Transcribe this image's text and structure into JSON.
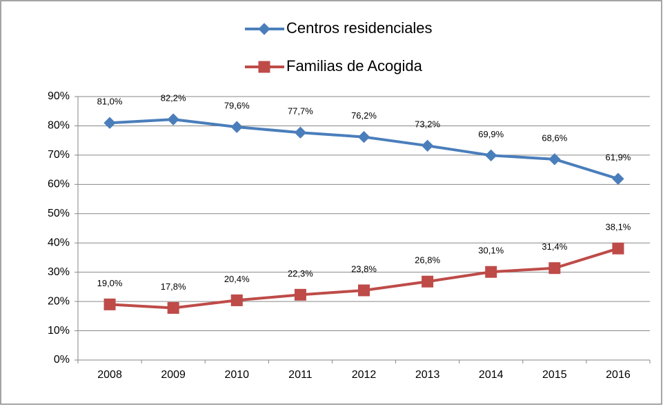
{
  "chart_data": {
    "type": "line",
    "categories": [
      "2008",
      "2009",
      "2010",
      "2011",
      "2012",
      "2013",
      "2014",
      "2015",
      "2016"
    ],
    "series": [
      {
        "name": "Centros residenciales",
        "color": "#4a7ebb",
        "marker": "diamond",
        "values": [
          81.0,
          82.2,
          79.6,
          77.7,
          76.2,
          73.2,
          69.9,
          68.6,
          61.9
        ],
        "value_labels": [
          "81,0%",
          "82,2%",
          "79,6%",
          "77,7%",
          "76,2%",
          "73,2%",
          "69,9%",
          "68,6%",
          "61,9%"
        ]
      },
      {
        "name": "Familias de Acogida",
        "color": "#be4b48",
        "marker": "square",
        "values": [
          19.0,
          17.8,
          20.4,
          22.3,
          23.8,
          26.8,
          30.1,
          31.4,
          38.1
        ],
        "value_labels": [
          "19,0%",
          "17,8%",
          "20,4%",
          "22,3%",
          "23,8%",
          "26,8%",
          "30,1%",
          "31,4%",
          "38,1%"
        ]
      }
    ],
    "ylim": [
      0,
      90
    ],
    "yticks": [
      {
        "value": 0,
        "label": "0%"
      },
      {
        "value": 10,
        "label": "10%"
      },
      {
        "value": 20,
        "label": "20%"
      },
      {
        "value": 30,
        "label": "30%"
      },
      {
        "value": 40,
        "label": "40%"
      },
      {
        "value": 50,
        "label": "50%"
      },
      {
        "value": 60,
        "label": "60%"
      },
      {
        "value": 70,
        "label": "70%"
      },
      {
        "value": 80,
        "label": "80%"
      },
      {
        "value": 90,
        "label": "90%"
      }
    ],
    "grid": true,
    "legend": "top"
  }
}
